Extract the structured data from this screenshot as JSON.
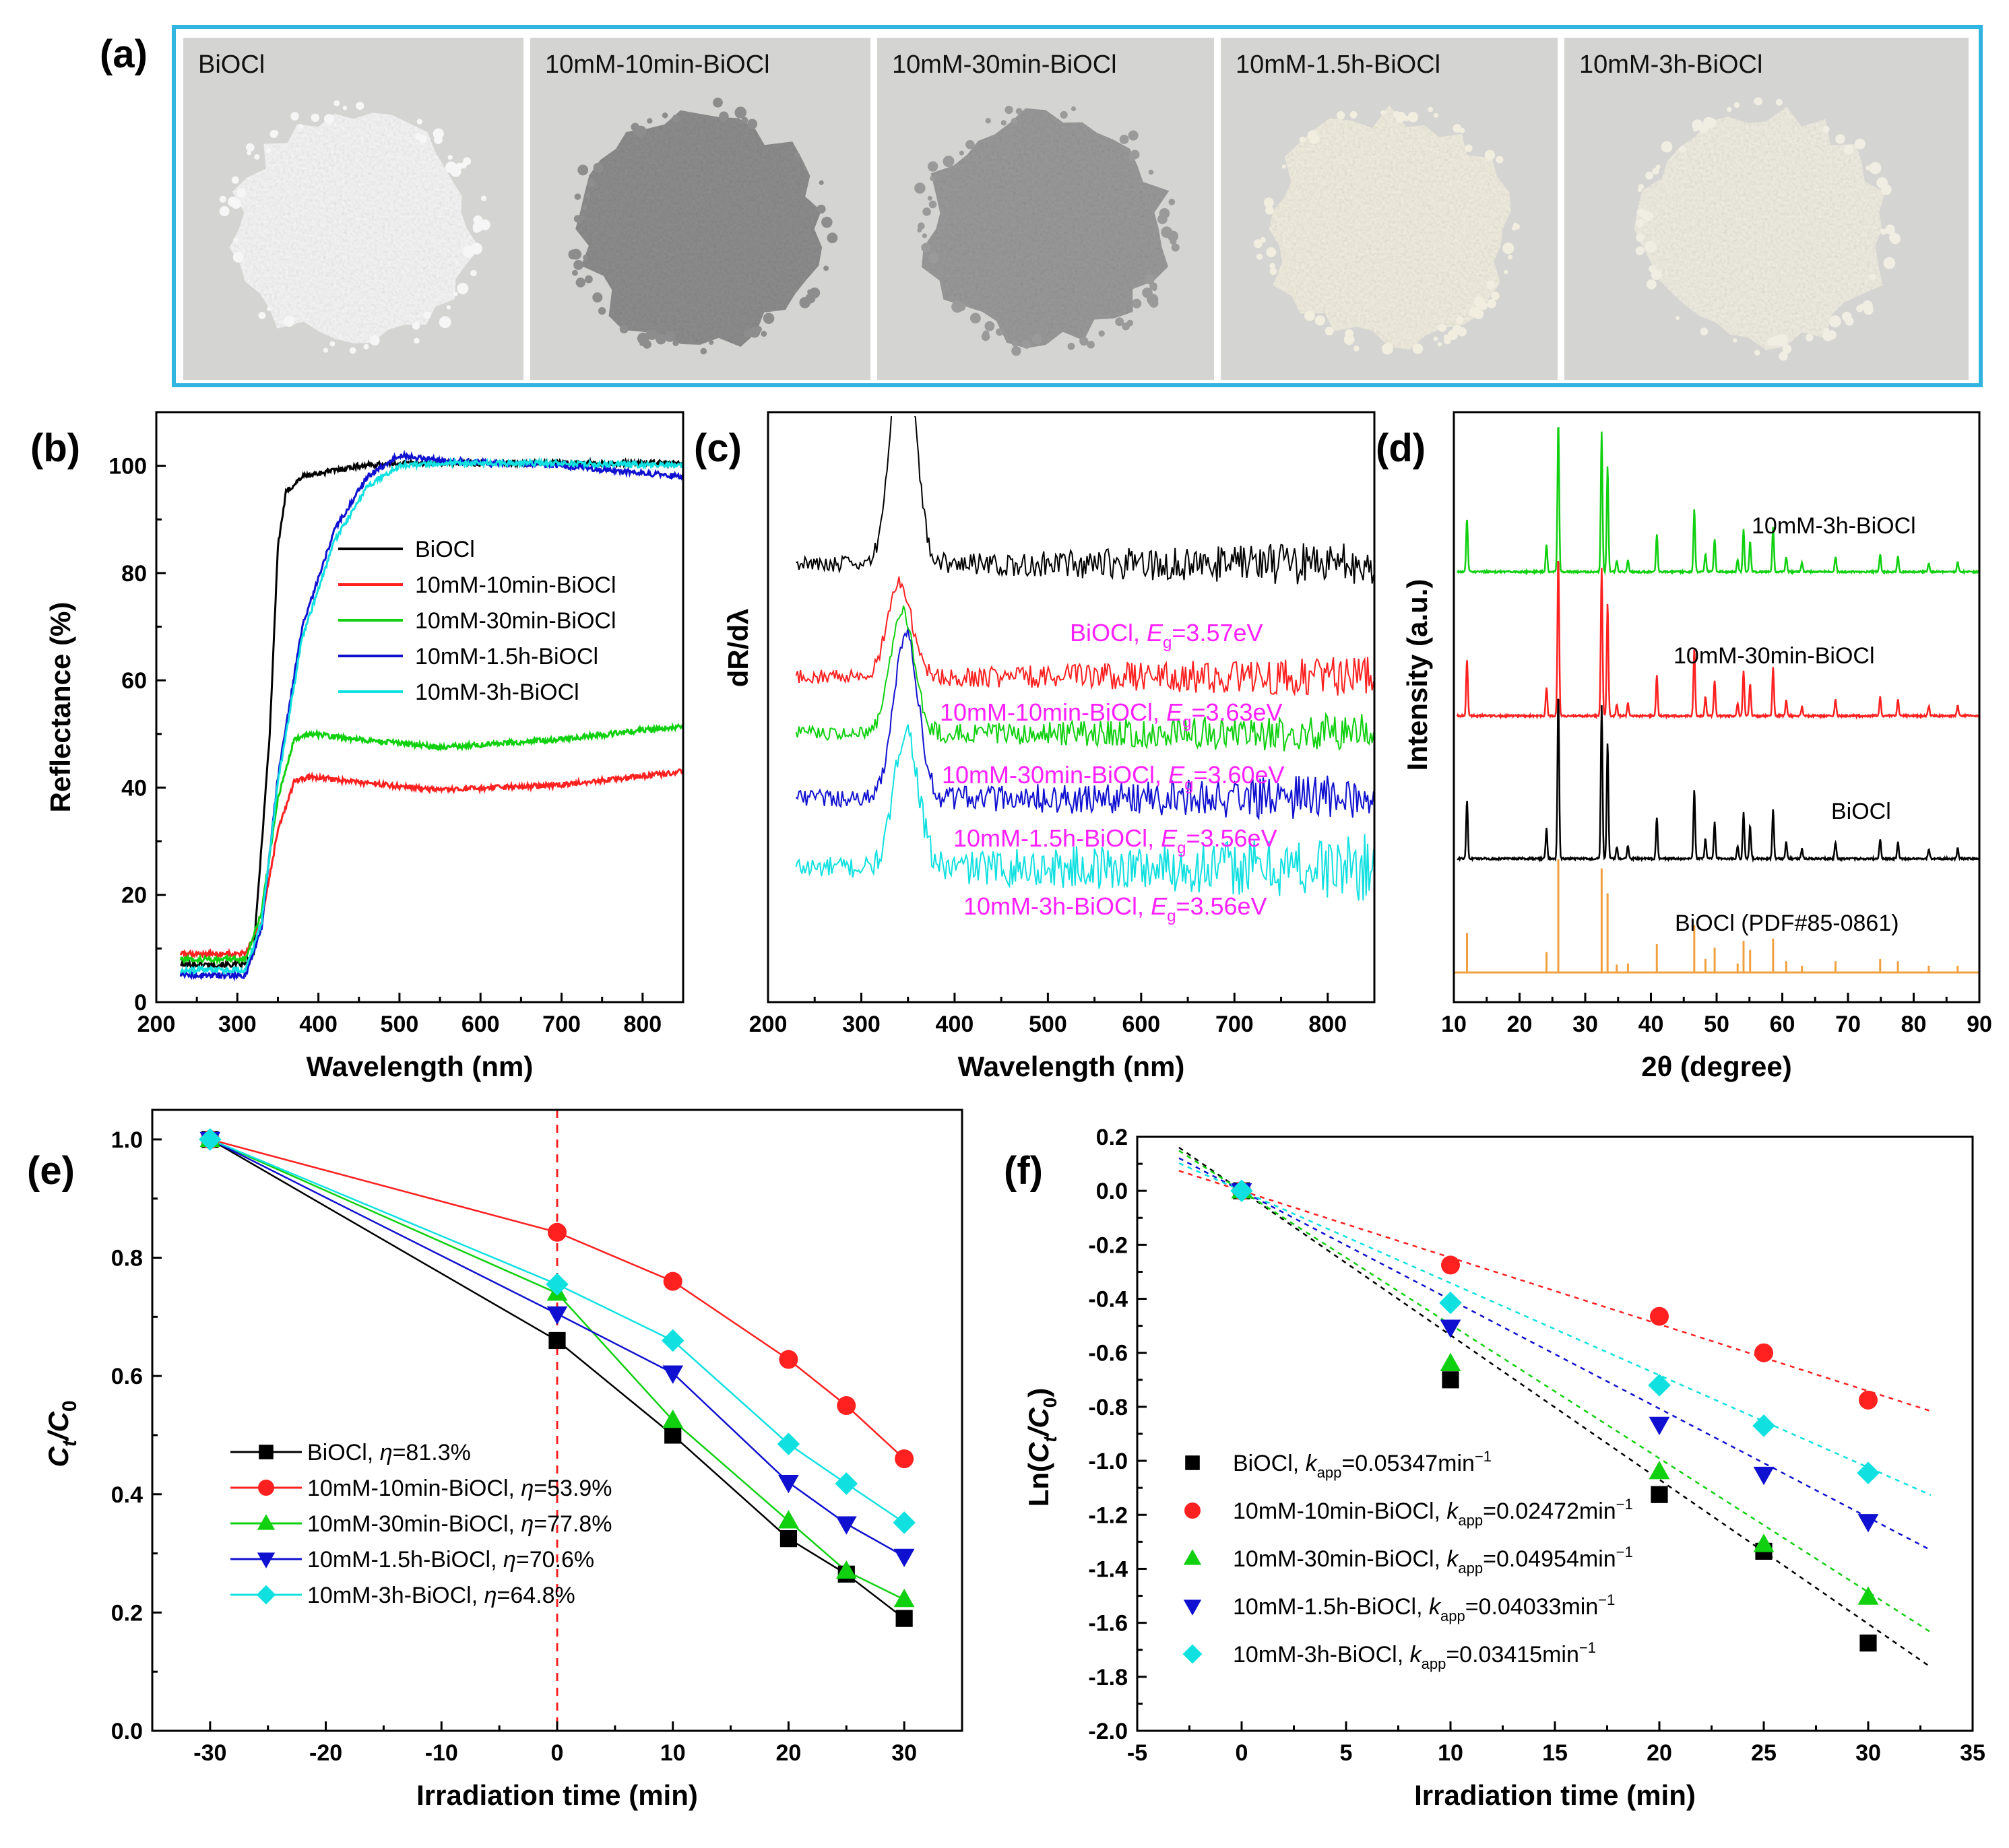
{
  "panel_labels": {
    "a": "(a)",
    "b": "(b)",
    "c": "(c)",
    "d": "(d)",
    "e": "(e)",
    "f": "(f)"
  },
  "photos": [
    {
      "label": "BiOCl",
      "powder_color": "#f6f6f6"
    },
    {
      "label": "10mM-10min-BiOCl",
      "powder_color": "#8d8d8d"
    },
    {
      "label": "10mM-30min-BiOCl",
      "powder_color": "#9a9a9a"
    },
    {
      "label": "10mM-1.5h-BiOCl",
      "powder_color": "#f1eee0"
    },
    {
      "label": "10mM-3h-BiOCl",
      "powder_color": "#f0ede2"
    }
  ],
  "colors": {
    "frame": "#30b4e0",
    "black": "#000000",
    "red": "#ff2020",
    "green": "#10d010",
    "blue": "#1010d0",
    "cyan": "#10e0e0",
    "orange": "#f0a040",
    "magenta": "#ff20ff"
  },
  "chart_data": [
    {
      "id": "b",
      "type": "line",
      "xlabel": "Wavelength (nm)",
      "ylabel": "Reflectance (%)",
      "xlim": [
        200,
        850
      ],
      "ylim": [
        0,
        110
      ],
      "xticks": [
        "200",
        "300",
        "400",
        "500",
        "600",
        "700",
        "800"
      ],
      "yticks": [
        "0",
        "20",
        "40",
        "60",
        "80",
        "100"
      ],
      "legend_position": "center-right",
      "series": [
        {
          "name": "BiOCl",
          "color": "black",
          "x": [
            230,
            310,
            320,
            340,
            350,
            360,
            380,
            450,
            500,
            600,
            700,
            850
          ],
          "y": [
            7,
            7,
            9,
            50,
            85,
            95,
            98,
            100,
            100.5,
            100.5,
            100.5,
            100.5
          ]
        },
        {
          "name": "10mM-10min-BiOCl",
          "color": "red",
          "x": [
            230,
            310,
            330,
            350,
            370,
            390,
            450,
            550,
            700,
            850
          ],
          "y": [
            9,
            9,
            15,
            32,
            41,
            42,
            41,
            39.5,
            40.5,
            43
          ]
        },
        {
          "name": "10mM-30min-BiOCl",
          "color": "green",
          "x": [
            230,
            310,
            330,
            350,
            370,
            390,
            450,
            550,
            700,
            850
          ],
          "y": [
            8,
            8,
            17,
            38,
            49,
            50,
            49,
            47.5,
            49,
            51.5
          ]
        },
        {
          "name": "10mM-1.5h-BiOCl",
          "color": "blue",
          "x": [
            230,
            310,
            330,
            350,
            380,
            420,
            460,
            500,
            550,
            700,
            850
          ],
          "y": [
            5,
            5,
            14,
            42,
            70,
            88,
            98,
            102,
            101,
            100,
            98
          ]
        },
        {
          "name": "10mM-3h-BiOCl",
          "color": "cyan",
          "x": [
            230,
            310,
            330,
            350,
            380,
            420,
            460,
            500,
            550,
            700,
            850
          ],
          "y": [
            6,
            6,
            15,
            41,
            68,
            86,
            96,
            100,
            100.5,
            100.5,
            100
          ]
        }
      ]
    },
    {
      "id": "c",
      "type": "line",
      "xlabel": "Wavelength (nm)",
      "ylabel": "dR/dλ",
      "xlim": [
        200,
        850
      ],
      "xticks": [
        "200",
        "300",
        "400",
        "500",
        "600",
        "700",
        "800"
      ],
      "series": [
        {
          "name": "BiOCl",
          "color": "black",
          "baseline": 0.5,
          "peak_nm": 345,
          "peak_height": 2.7,
          "noise": 0.5,
          "annotation_label": "BiOCl, ",
          "eg_value": "=3.57eV"
        },
        {
          "name": "10mM-10min-BiOCl",
          "color": "red",
          "baseline": 1.1,
          "peak_nm": 341,
          "peak_height": 1.1,
          "noise": 0.45,
          "annotation_label": "10mM-10min-BiOCl, ",
          "eg_value": "=3.63eV"
        },
        {
          "name": "10mM-30min-BiOCl",
          "color": "green",
          "baseline": 1.7,
          "peak_nm": 344,
          "peak_height": 1.4,
          "noise": 0.45,
          "annotation_label": "10mM-30min-BiOCl, ",
          "eg_value": "=3.60eV"
        },
        {
          "name": "10mM-1.5h-BiOCl",
          "color": "blue",
          "baseline": 2.4,
          "peak_nm": 348,
          "peak_height": 1.9,
          "noise": 0.55,
          "annotation_label": "10mM-1.5h-BiOCl, ",
          "eg_value": "=3.56eV"
        },
        {
          "name": "10mM-3h-BiOCl",
          "color": "cyan",
          "baseline": 3.1,
          "peak_nm": 348,
          "peak_height": 1.6,
          "noise": 0.75,
          "annotation_label": "10mM-3h-BiOCl, ",
          "eg_value": "=3.56eV"
        }
      ],
      "eg_symbol": "E",
      "eg_subscript": "g"
    },
    {
      "id": "d",
      "type": "line",
      "xlabel": "2θ (degree)",
      "ylabel": "Intensity (a.u.)",
      "xlim": [
        10,
        90
      ],
      "xticks": [
        "10",
        "20",
        "30",
        "40",
        "50",
        "60",
        "70",
        "80",
        "90"
      ],
      "peaks_2theta": [
        12.0,
        24.1,
        25.9,
        32.5,
        33.4,
        34.8,
        36.5,
        40.9,
        46.6,
        48.3,
        49.7,
        53.2,
        54.1,
        55.1,
        58.6,
        60.6,
        63.0,
        68.1,
        74.9,
        77.6,
        82.3,
        86.7
      ],
      "peaks_rel": [
        0.35,
        0.18,
        1.0,
        0.92,
        0.7,
        0.07,
        0.08,
        0.25,
        0.42,
        0.12,
        0.22,
        0.08,
        0.28,
        0.2,
        0.3,
        0.1,
        0.06,
        0.1,
        0.12,
        0.1,
        0.06,
        0.06
      ],
      "series": [
        {
          "name": "BiOCl (PDF#85-0861)",
          "color": "orange",
          "style": "sticks",
          "label": "BiOCl (PDF#85-0861)"
        },
        {
          "name": "BiOCl",
          "color": "black",
          "label": "BiOCl"
        },
        {
          "name": "10mM-30min-BiOCl",
          "color": "red",
          "label": "10mM-30min-BiOCl"
        },
        {
          "name": "10mM-3h-BiOCl",
          "color": "green",
          "label": "10mM-3h-BiOCl"
        }
      ]
    },
    {
      "id": "e",
      "type": "line",
      "xlabel": "Irradiation time (min)",
      "ylabel_main": "C",
      "ylabel_sub1": "t",
      "ylabel_slash": "/C",
      "ylabel_sub2": "0",
      "xlim": [
        -35,
        35
      ],
      "ylim": [
        0,
        1.05
      ],
      "xticks": [
        "-30",
        "-20",
        "-10",
        "0",
        "10",
        "20",
        "30"
      ],
      "yticks": [
        "0.0",
        "0.2",
        "0.4",
        "0.6",
        "0.8",
        "1.0"
      ],
      "dashed_vline_x": 0,
      "eta_symbol": "η",
      "legend_position": "bottom-left",
      "series": [
        {
          "name": "BiOCl",
          "color": "black",
          "marker": "square",
          "eta": "=81.3%",
          "x": [
            -30,
            0,
            10,
            20,
            25,
            30
          ],
          "y": [
            1.0,
            0.66,
            0.5,
            0.325,
            0.265,
            0.19
          ]
        },
        {
          "name": "10mM-10min-BiOCl",
          "color": "red",
          "marker": "circle",
          "eta": "=53.9%",
          "x": [
            -30,
            0,
            10,
            20,
            25,
            30
          ],
          "y": [
            1.0,
            0.843,
            0.76,
            0.628,
            0.55,
            0.46
          ]
        },
        {
          "name": "10mM-30min-BiOCl",
          "color": "green",
          "marker": "triangle-up",
          "eta": "=77.8%",
          "x": [
            -30,
            0,
            10,
            20,
            25,
            30
          ],
          "y": [
            1.0,
            0.74,
            0.525,
            0.355,
            0.27,
            0.222
          ]
        },
        {
          "name": "10mM-1.5h-BiOCl",
          "color": "blue",
          "marker": "triangle-down",
          "eta": "=70.6%",
          "x": [
            -30,
            0,
            10,
            20,
            25,
            30
          ],
          "y": [
            1.0,
            0.705,
            0.605,
            0.42,
            0.35,
            0.295
          ]
        },
        {
          "name": "10mM-3h-BiOCl",
          "color": "cyan",
          "marker": "diamond",
          "eta": "=64.8%",
          "x": [
            -30,
            0,
            10,
            20,
            25,
            30
          ],
          "y": [
            1.0,
            0.755,
            0.66,
            0.485,
            0.418,
            0.352
          ]
        }
      ]
    },
    {
      "id": "f",
      "type": "scatter",
      "xlabel": "Irradiation time (min)",
      "ylabel_main": "Ln(C",
      "ylabel_sub1": "t",
      "ylabel_slash": "/C",
      "ylabel_sub2": "0",
      "ylabel_close": ")",
      "xlim": [
        -5,
        35
      ],
      "ylim": [
        -2.0,
        0.2
      ],
      "xticks": [
        "-5",
        "0",
        "5",
        "10",
        "15",
        "20",
        "25",
        "30",
        "35"
      ],
      "yticks": [
        "-2.0",
        "-1.8",
        "-1.6",
        "-1.4",
        "-1.2",
        "-1.0",
        "-0.8",
        "-0.6",
        "-0.4",
        "-0.2",
        "0.0",
        "0.2"
      ],
      "fit_range": [
        -3,
        33
      ],
      "k_symbol": "k",
      "k_subscript": "app",
      "legend_position": "bottom-left",
      "series": [
        {
          "name": "BiOCl",
          "color": "black",
          "marker": "square",
          "k_text": "=0.05347min",
          "k_exp": "−1",
          "slope": -0.05347,
          "x": [
            0,
            10,
            20,
            25,
            30
          ],
          "y": [
            0,
            -0.7,
            -1.125,
            -1.335,
            -1.675
          ]
        },
        {
          "name": "10mM-10min-BiOCl",
          "color": "red",
          "marker": "circle",
          "k_text": "=0.02472min",
          "k_exp": "−1",
          "slope": -0.02472,
          "x": [
            0,
            10,
            20,
            25,
            30
          ],
          "y": [
            0,
            -0.275,
            -0.465,
            -0.6,
            -0.775
          ]
        },
        {
          "name": "10mM-30min-BiOCl",
          "color": "green",
          "marker": "triangle-up",
          "k_text": "=0.04954min",
          "k_exp": "−1",
          "slope": -0.04954,
          "x": [
            0,
            10,
            20,
            25,
            30
          ],
          "y": [
            0,
            -0.64,
            -1.04,
            -1.31,
            -1.505
          ]
        },
        {
          "name": "10mM-1.5h-BiOCl",
          "color": "blue",
          "marker": "triangle-down",
          "k_text": "=0.04033min",
          "k_exp": "−1",
          "slope": -0.04033,
          "x": [
            0,
            10,
            20,
            25,
            30
          ],
          "y": [
            0,
            -0.505,
            -0.865,
            -1.05,
            -1.225
          ]
        },
        {
          "name": "10mM-3h-BiOCl",
          "color": "cyan",
          "marker": "diamond",
          "k_text": "=0.03415min",
          "k_exp": "−1",
          "slope": -0.03415,
          "x": [
            0,
            10,
            20,
            25,
            30
          ],
          "y": [
            0,
            -0.415,
            -0.72,
            -0.87,
            -1.045
          ]
        }
      ]
    }
  ]
}
